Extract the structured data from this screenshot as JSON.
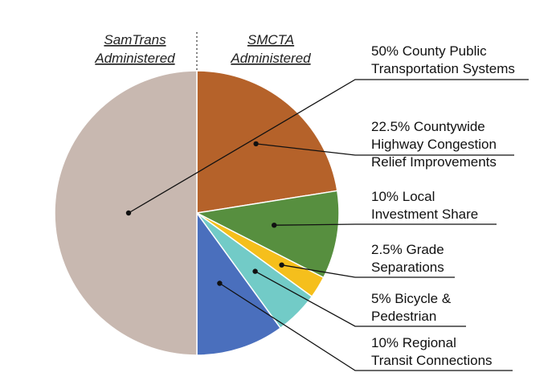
{
  "chart_data": {
    "type": "pie",
    "title": "",
    "halves": [
      {
        "label_lines": [
          "SamTrans",
          "Administered"
        ]
      },
      {
        "label_lines": [
          "SMCTA",
          "Administered"
        ]
      }
    ],
    "slices": [
      {
        "value": 22.5,
        "label_lines": [
          "22.5% Countywide",
          "Highway Congestion",
          "Relief Improvements"
        ],
        "color": "#b5622a"
      },
      {
        "value": 10,
        "label_lines": [
          "10% Local",
          "Investment Share"
        ],
        "color": "#578f3f"
      },
      {
        "value": 2.5,
        "label_lines": [
          "2.5% Grade",
          "Separations"
        ],
        "color": "#f5bf1c"
      },
      {
        "value": 5,
        "label_lines": [
          "5% Bicycle &",
          "Pedestrian"
        ],
        "color": "#72cbc7"
      },
      {
        "value": 10,
        "label_lines": [
          "10% Regional",
          "Transit Connections"
        ],
        "color": "#4a6fbd"
      },
      {
        "value": 50,
        "label_lines": [
          "50% County Public",
          "Transportation Systems"
        ],
        "color": "#c8b8b0"
      }
    ]
  }
}
